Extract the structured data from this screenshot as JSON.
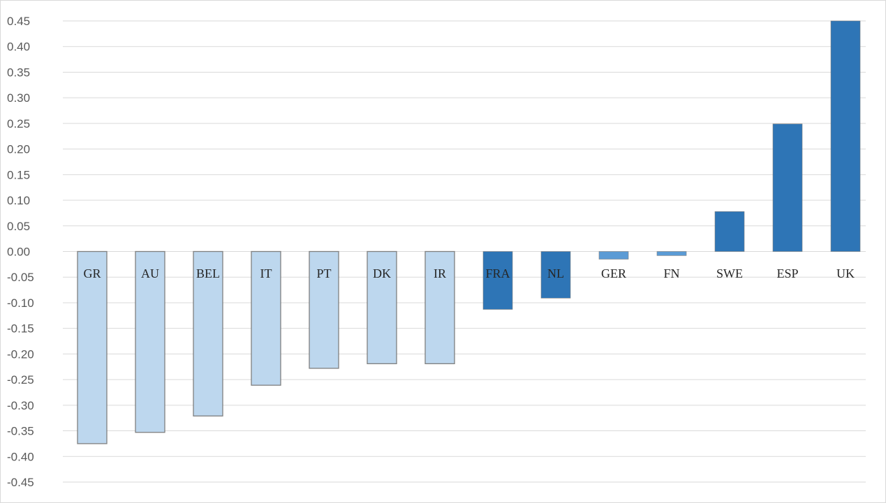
{
  "chart_data": {
    "type": "bar",
    "title": "",
    "xlabel": "",
    "ylabel": "",
    "ylim": [
      -0.45,
      0.45
    ],
    "yticks": [
      "0.45",
      "0.40",
      "0.35",
      "0.30",
      "0.25",
      "0.20",
      "0.15",
      "0.10",
      "0.05",
      "0.00",
      "-0.05",
      "-0.10",
      "-0.15",
      "-0.20",
      "-0.25",
      "-0.30",
      "-0.35",
      "-0.40",
      "-0.45"
    ],
    "grid": true,
    "legend": "none",
    "categories": [
      "GR",
      "AU",
      "BEL",
      "IT",
      "PT",
      "DK",
      "IR",
      "FRA",
      "NL",
      "GER",
      "FN",
      "SWE",
      "ESP",
      "UK"
    ],
    "values": [
      -0.375,
      -0.353,
      -0.321,
      -0.261,
      -0.228,
      -0.219,
      -0.219,
      -0.113,
      -0.091,
      -0.015,
      -0.008,
      0.078,
      0.249,
      0.45
    ],
    "bar_colors": [
      "#bdd7ee",
      "#bdd7ee",
      "#bdd7ee",
      "#bdd7ee",
      "#bdd7ee",
      "#bdd7ee",
      "#bdd7ee",
      "#2e75b6",
      "#2e75b6",
      "#5b9bd5",
      "#5b9bd5",
      "#2e75b6",
      "#2e75b6",
      "#2e75b6"
    ],
    "colors": {
      "grid": "#d9d9d9",
      "bar_border": "#7f7f7f",
      "tick_text": "#595959",
      "category_text": "#262626"
    }
  }
}
